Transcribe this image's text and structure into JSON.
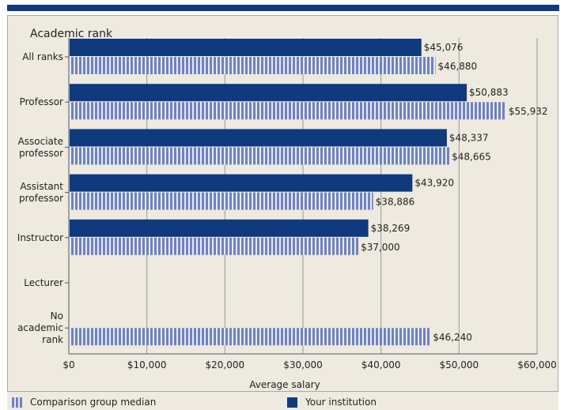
{
  "chart_data": {
    "type": "bar",
    "orientation": "horizontal",
    "title": "Academic rank",
    "xlabel": "Average salary",
    "categories": [
      [
        "All ranks"
      ],
      [
        "Professor"
      ],
      [
        "Associate",
        "professor"
      ],
      [
        "Assistant",
        "professor"
      ],
      [
        "Instructor"
      ],
      [
        "Lecturer"
      ],
      [
        "No",
        "academic",
        "rank"
      ]
    ],
    "series": [
      {
        "name": "Your institution",
        "color": "#0f3a7d",
        "values": [
          45076,
          50883,
          48337,
          43920,
          38269,
          null,
          null
        ],
        "labels": [
          "$45,076",
          "$50,883",
          "$48,337",
          "$43,920",
          "$38,269",
          "",
          ""
        ]
      },
      {
        "name": "Comparison group median",
        "color": "#6f82bf",
        "pattern": "vertical-stripes",
        "values": [
          46880,
          55932,
          48665,
          38886,
          37000,
          null,
          46240
        ],
        "labels": [
          "$46,880",
          "$55,932",
          "$48,665",
          "$38,886",
          "$37,000",
          "",
          "$46,240"
        ]
      }
    ],
    "xlim": [
      0,
      60000
    ],
    "xticks": [
      0,
      10000,
      20000,
      30000,
      40000,
      50000,
      60000
    ],
    "xtick_labels": [
      "$0",
      "$10,000",
      "$20,000",
      "$30,000",
      "$40,000",
      "$50,000",
      "$60,000"
    ],
    "grid": "vertical",
    "legend": "bottom"
  },
  "legend": {
    "comparison_label": "Comparison group median",
    "institution_label": "Your institution"
  }
}
